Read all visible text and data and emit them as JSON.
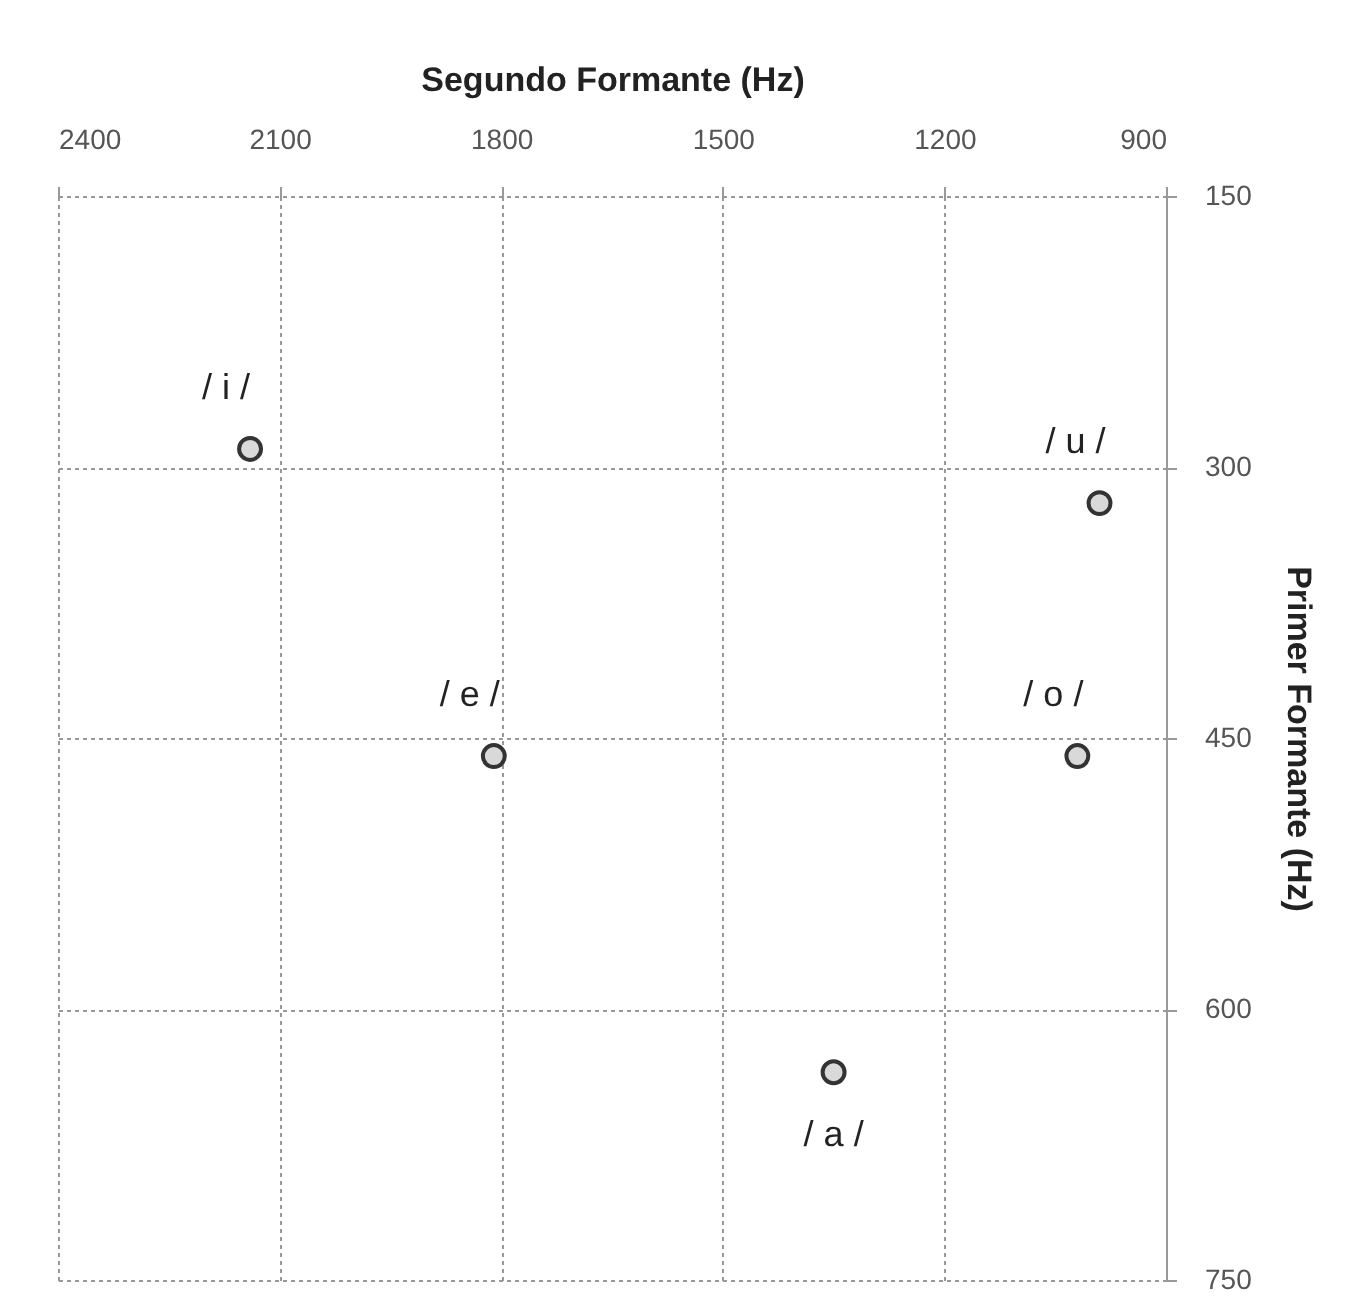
{
  "chart_data": {
    "type": "scatter",
    "xlabel": "Segundo Formante (Hz)",
    "ylabel": "Primer Formante (Hz)",
    "x": [
      2140,
      990,
      1810,
      1020,
      1350
    ],
    "values": [
      290,
      320,
      460,
      460,
      635
    ],
    "color": "#d9d9d9",
    "marker": "circle",
    "grid": true,
    "xlim": [
      2400,
      900
    ],
    "xticks": [
      2400,
      2100,
      1800,
      1500,
      1200,
      900
    ],
    "ylim": [
      750,
      150
    ],
    "yticks": [
      150,
      300,
      450,
      600,
      750
    ],
    "annotations": [
      {
        "text": "/ i /",
        "x": 2140,
        "y": 290
      },
      {
        "text": "/ u /",
        "x": 990,
        "y": 320
      },
      {
        "text": "/ e /",
        "x": 1810,
        "y": 460
      },
      {
        "text": "/ o /",
        "x": 1020,
        "y": 460
      },
      {
        "text": "/ a /",
        "x": 1350,
        "y": 635
      }
    ]
  }
}
